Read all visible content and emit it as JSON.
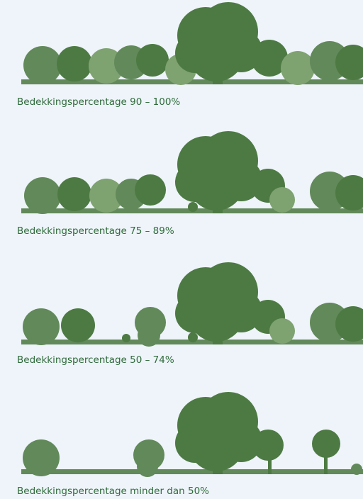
{
  "panels": [
    {
      "caption": "Bedekkingspercentage 90 – 100%"
    },
    {
      "caption": "Bedekkingspercentage 75 – 89%"
    },
    {
      "caption": "Bedekkingspercentage 50 – 74%"
    },
    {
      "caption": "Bedekkingspercentage minder dan 50%"
    }
  ]
}
